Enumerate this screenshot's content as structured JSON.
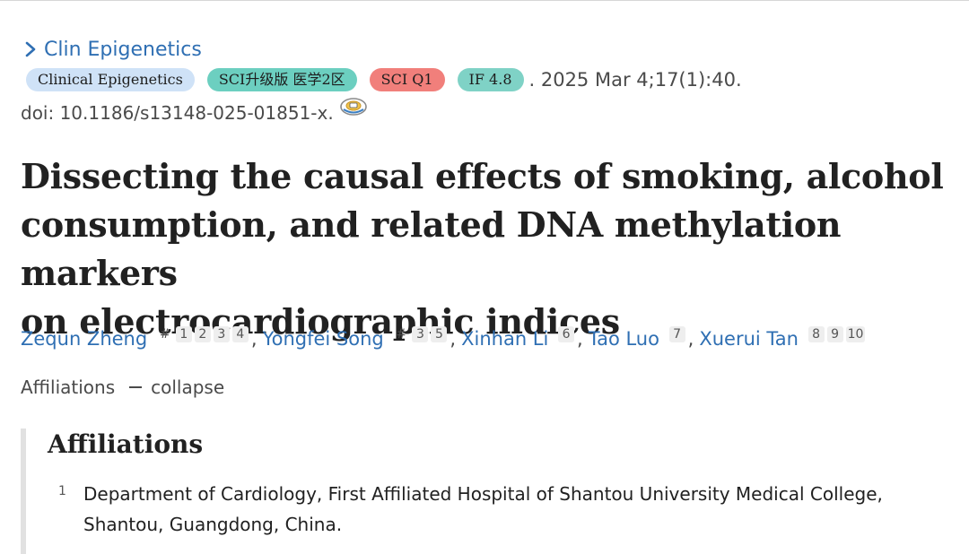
{
  "journal": {
    "name": "Clin Epigenetics"
  },
  "badges": {
    "journal": "Clinical Epigenetics",
    "sci_category": "SCI升级版 医学2区",
    "sci_quartile": "SCI Q1",
    "impact_factor": "IF 4.8"
  },
  "citation": {
    "pub_date": ". 2025 Mar 4;17(1):40.",
    "doi": "doi: 10.1186/s13148-025-01851-x."
  },
  "title": {
    "line1": "Dissecting the causal effects of smoking, alcohol",
    "line2": "consumption, and related DNA methylation markers",
    "line3": "on electrocardiographic indices"
  },
  "authors": [
    {
      "name": "Zequn Zheng",
      "marks": [
        "#",
        "1",
        "2",
        "3",
        "4"
      ]
    },
    {
      "name": "Yongfei Song",
      "marks": [
        "#",
        "3",
        "5"
      ]
    },
    {
      "name": "Xinhan Li",
      "marks": [
        "6"
      ]
    },
    {
      "name": "Tao Luo",
      "marks": [
        "7"
      ]
    },
    {
      "name": "Xuerui Tan",
      "marks": [
        "8",
        "9",
        "10"
      ]
    }
  ],
  "author_separator": ",",
  "affiliations_toggle": {
    "label": "Affiliations",
    "action": "collapse"
  },
  "affiliations": {
    "heading": "Affiliations",
    "items": [
      {
        "num": "1",
        "line1": "Department of Cardiology, First Affiliated Hospital of Shantou University Medical College,",
        "line2": "Shantou, Guangdong, China."
      }
    ]
  },
  "icons": {
    "journal_chevron": "chevron-right-icon",
    "doi_link": "fulltext-link-icon"
  },
  "colors": {
    "link": "#2f6fb3",
    "badge_journal": "#cfe2f7",
    "badge_sci": "#6ccfc0",
    "badge_q1": "#f17f7b",
    "badge_if": "#7fd2c6"
  }
}
